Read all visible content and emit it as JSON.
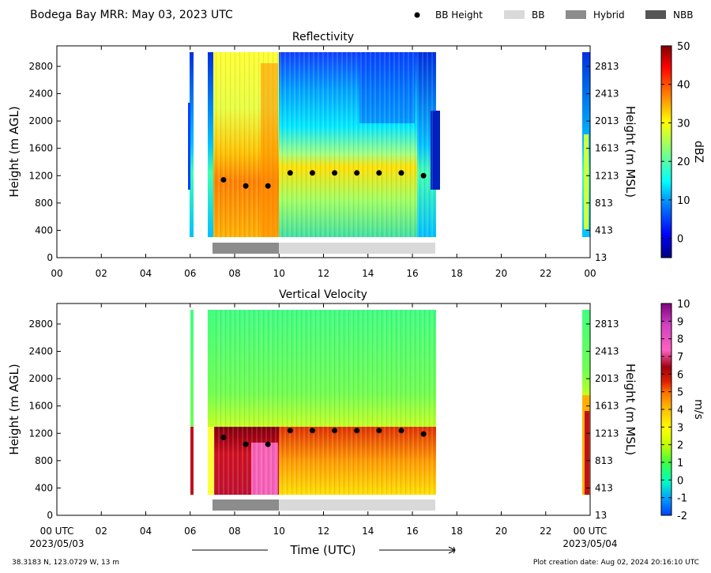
{
  "header": {
    "title": "Bodega Bay MRR:  May 03, 2023 UTC",
    "legend": [
      {
        "label": "BB Height",
        "symbol": "dot",
        "color": "#000000"
      },
      {
        "label": "BB",
        "symbol": "box",
        "color": "#d9d9d9"
      },
      {
        "label": "Hybrid",
        "symbol": "box",
        "color": "#8c8c8c"
      },
      {
        "label": "NBB",
        "symbol": "box",
        "color": "#555555"
      }
    ]
  },
  "footer": {
    "location": "38.3183 N, 123.0729 W, 13 m",
    "creation": "Plot creation date: Aug 02, 2024 20:16:10 UTC",
    "xlabel": "Time (UTC)",
    "start_tick": "00 UTC",
    "start_date": "2023/05/03",
    "end_tick": "00 UTC",
    "end_date": "2023/05/04"
  },
  "chart_data": [
    {
      "type": "heatmap",
      "title": "Reflectivity",
      "ylabel": "Height (m AGL)",
      "ylabel_right": "Height (m MSL)",
      "xlim": [
        0,
        24
      ],
      "ylim": [
        0,
        3100
      ],
      "xticks": [
        "00",
        "02",
        "04",
        "06",
        "08",
        "10",
        "12",
        "14",
        "16",
        "18",
        "20",
        "22",
        "00"
      ],
      "yticks": [
        0,
        400,
        800,
        1200,
        1600,
        2000,
        2400,
        2800
      ],
      "yticks_right": [
        13,
        413,
        813,
        1213,
        1613,
        2013,
        2413,
        2813
      ],
      "colorbar": {
        "label": "dBZ",
        "min": -5,
        "max": 50,
        "ticks": [
          0,
          10,
          20,
          30,
          40,
          50
        ]
      },
      "bb_height": {
        "x": [
          7.5,
          8.5,
          9.5,
          10.5,
          11.5,
          12.5,
          13.5,
          14.5,
          15.5,
          16.5
        ],
        "y": [
          1140,
          1050,
          1050,
          1240,
          1240,
          1240,
          1240,
          1240,
          1240,
          1200
        ]
      },
      "bb_type": [
        {
          "start": 7.0,
          "end": 10.0,
          "type": "Hybrid"
        },
        {
          "start": 10.0,
          "end": 17.0,
          "type": "BB"
        }
      ]
    },
    {
      "type": "heatmap",
      "title": "Vertical Velocity",
      "ylabel": "Height (m AGL)",
      "ylabel_right": "Height (m MSL)",
      "xlim": [
        0,
        24
      ],
      "ylim": [
        0,
        3100
      ],
      "xticks": [
        "",
        "02",
        "04",
        "06",
        "08",
        "10",
        "12",
        "14",
        "16",
        "18",
        "20",
        "22",
        ""
      ],
      "yticks": [
        0,
        400,
        800,
        1200,
        1600,
        2000,
        2400,
        2800
      ],
      "yticks_right": [
        13,
        413,
        813,
        1213,
        1613,
        2013,
        2413,
        2813
      ],
      "colorbar": {
        "label": "m/s",
        "min": -2,
        "max": 10,
        "ticks": [
          -2,
          -1,
          0,
          1,
          2,
          3,
          4,
          5,
          6,
          7,
          8,
          9,
          10
        ]
      },
      "bb_height": {
        "x": [
          7.5,
          8.5,
          9.5,
          10.5,
          11.5,
          12.5,
          13.5,
          14.5,
          15.5,
          16.5
        ],
        "y": [
          1140,
          1040,
          1040,
          1240,
          1240,
          1240,
          1240,
          1240,
          1240,
          1190
        ]
      },
      "bb_type": [
        {
          "start": 7.0,
          "end": 10.0,
          "type": "Hybrid"
        },
        {
          "start": 10.0,
          "end": 17.0,
          "type": "BB"
        }
      ]
    }
  ]
}
